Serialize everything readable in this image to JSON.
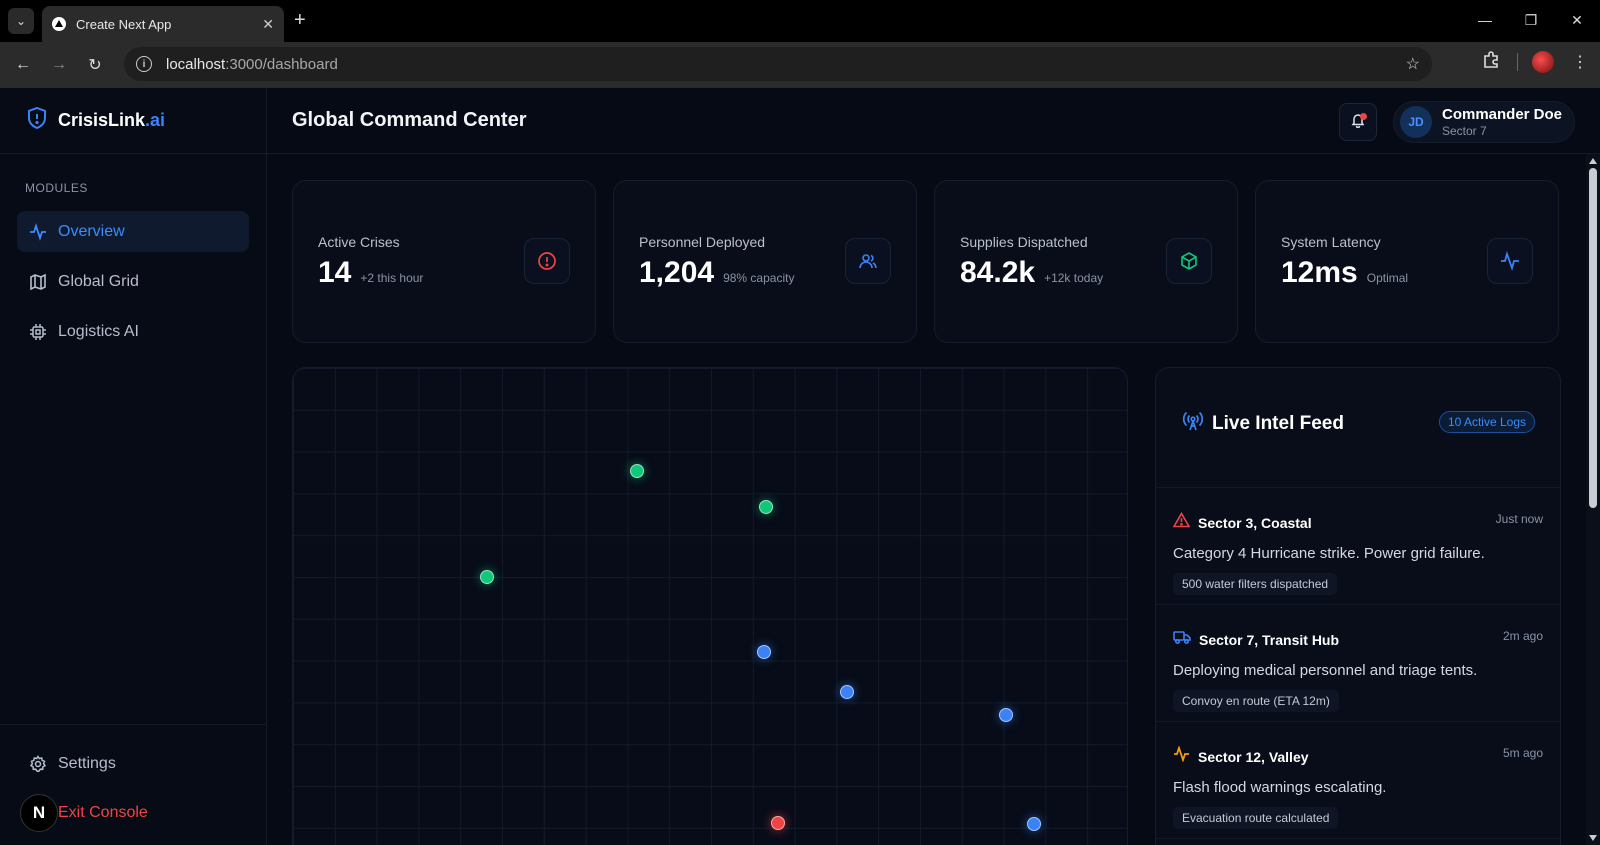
{
  "browser": {
    "tab_title": "Create Next App",
    "url_host": "localhost",
    "url_path": ":3000/dashboard"
  },
  "sidebar": {
    "brand": "CrisisLink",
    "brand_suffix": ".ai",
    "modules_label": "MODULES",
    "items": [
      {
        "label": "Overview",
        "icon": "activity-icon",
        "active": true
      },
      {
        "label": "Global Grid",
        "icon": "map-icon",
        "active": false
      },
      {
        "label": "Logistics AI",
        "icon": "cpu-icon",
        "active": false
      }
    ],
    "settings_label": "Settings",
    "exit_label": "Exit Console"
  },
  "header": {
    "title": "Global Command Center",
    "user_initials": "JD",
    "user_name": "Commander Doe",
    "user_sector": "Sector 7"
  },
  "stats": [
    {
      "label": "Active Crises",
      "value": "14",
      "sub": "+2 this hour",
      "icon": "alert-circle-icon",
      "color": "#ef4444"
    },
    {
      "label": "Personnel Deployed",
      "value": "1,204",
      "sub": "98% capacity",
      "icon": "users-icon",
      "color": "#3b82f6"
    },
    {
      "label": "Supplies Dispatched",
      "value": "84.2k",
      "sub": "+12k today",
      "icon": "package-icon",
      "color": "#10c77a"
    },
    {
      "label": "System Latency",
      "value": "12ms",
      "sub": "Optimal",
      "icon": "activity-icon",
      "color": "#3b82f6"
    }
  ],
  "feed": {
    "title": "Live Intel Feed",
    "badge": "10 Active Logs",
    "logs": [
      {
        "title": "Sector 3, Coastal",
        "time": "Just now",
        "body": "Category 4 Hurricane strike. Power grid failure.",
        "tag": "500 water filters dispatched",
        "icon": "alert-triangle-icon",
        "color": "#ef4444"
      },
      {
        "title": "Sector 7, Transit Hub",
        "time": "2m ago",
        "body": "Deploying medical personnel and triage tents.",
        "tag": "Convoy en route (ETA 12m)",
        "icon": "truck-icon",
        "color": "#3b82f6"
      },
      {
        "title": "Sector 12, Valley",
        "time": "5m ago",
        "body": "Flash flood warnings escalating.",
        "tag": "Evacuation route calculated",
        "icon": "activity-icon",
        "color": "#f59e0b"
      }
    ]
  },
  "colors": {
    "accent": "#3b82f6",
    "danger": "#ef4444",
    "success": "#10c77a"
  }
}
